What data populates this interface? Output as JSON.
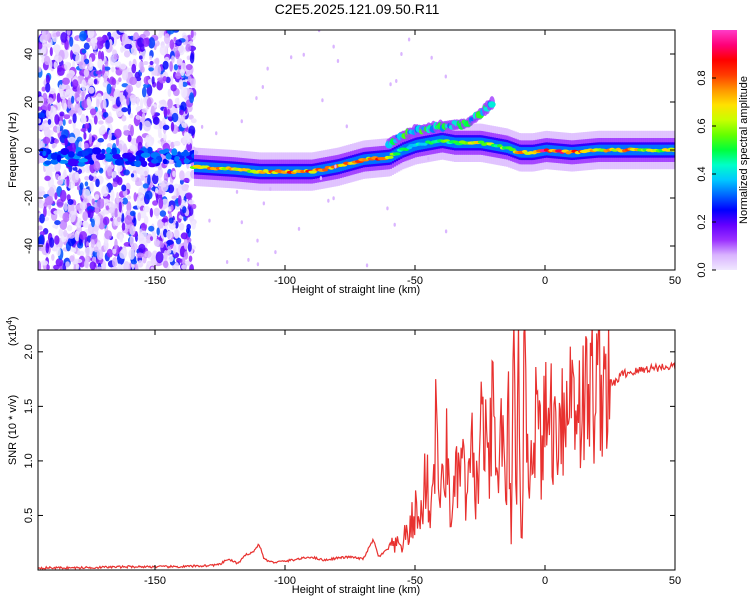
{
  "title": "C2E5.2025.121.09.50.R11",
  "chart_data": [
    {
      "type": "heatmap",
      "xlabel": "Height of straight line (km)",
      "ylabel": "Frequency (Hz)",
      "xlim": [
        -195,
        50
      ],
      "ylim": [
        -50,
        50
      ],
      "xticks": [
        -150,
        -100,
        -50,
        0,
        50
      ],
      "yticks": [
        -40,
        -20,
        0,
        20,
        40
      ],
      "colorbar": {
        "label": "Normalized spectral amplitude",
        "range": [
          0,
          1
        ],
        "ticks": [
          "0.0",
          "0.2",
          "0.4",
          "0.6",
          "0.8"
        ],
        "tick_values": [
          0,
          0.2,
          0.4,
          0.6,
          0.8
        ],
        "colormap": [
          "#f0e8ff",
          "#d9b3ff",
          "#9b30ff",
          "#6400ff",
          "#0000ff",
          "#0066ff",
          "#00c8ff",
          "#00ffc8",
          "#00ff3c",
          "#64ff00",
          "#c8ff00",
          "#ffe100",
          "#ff9600",
          "#ff3c00",
          "#ff0000",
          "#ff0078",
          "#ff3cc8"
        ]
      },
      "ridge": {
        "x": [
          -135,
          -120,
          -110,
          -100,
          -90,
          -80,
          -70,
          -60,
          -55,
          -50,
          -45,
          -40,
          -35,
          -30,
          -25,
          -20,
          -15,
          -10,
          -5,
          0,
          10,
          20,
          30,
          40,
          50
        ],
        "y": [
          -7,
          -8,
          -9,
          -9,
          -9,
          -7,
          -4,
          -3,
          0,
          2,
          3,
          4,
          3,
          3,
          3,
          2,
          1,
          -1,
          -1,
          0,
          -1,
          0,
          0,
          0,
          0
        ],
        "amplitude": [
          0.75,
          0.75,
          0.7,
          0.85,
          0.85,
          0.75,
          0.8,
          0.85,
          0.5,
          0.45,
          0.5,
          0.55,
          0.6,
          0.65,
          0.7,
          0.6,
          0.6,
          0.75,
          0.8,
          0.95,
          0.9,
          0.75,
          0.8,
          0.7,
          0.65
        ]
      },
      "upper_branch": {
        "x": [
          -60,
          -50,
          -40,
          -30,
          -25,
          -20
        ],
        "y": [
          3,
          8,
          10,
          11,
          15,
          20
        ]
      },
      "noise_region": {
        "x": [
          -195,
          -135
        ]
      }
    },
    {
      "type": "line",
      "xlabel": "Height of straight line (km)",
      "ylabel": "SNR (10 * v/v)",
      "exponent_label": "(x10",
      "exponent_power": "4",
      "xlim": [
        -195,
        50
      ],
      "ylim": [
        0,
        2.2
      ],
      "xticks": [
        -150,
        -100,
        -50,
        0,
        50
      ],
      "yticks": [
        "0.5",
        "1.0",
        "1.5",
        "2.0"
      ],
      "ytick_values": [
        0.5,
        1.0,
        1.5,
        2.0
      ],
      "color": "#e8312f",
      "series": [
        {
          "x": [
            -195,
            -180,
            -160,
            -140,
            -130,
            -125,
            -122,
            -118,
            -115,
            -112,
            -110,
            -108,
            -105,
            -100,
            -95,
            -90,
            -85,
            -80,
            -75,
            -70,
            -66,
            -64,
            -60,
            -56,
            -52,
            -50,
            -48,
            -46,
            -44,
            -42,
            -40,
            -38,
            -36,
            -34,
            -32,
            -30,
            -28,
            -26,
            -24,
            -22,
            -20,
            -18,
            -17,
            -16,
            -15,
            -14,
            -13,
            -12,
            -11,
            -10,
            -9,
            -8,
            -6,
            -4,
            -2,
            0,
            2,
            4,
            6,
            8,
            10,
            14,
            18,
            22,
            26,
            30,
            35,
            40,
            45,
            50
          ],
          "y": [
            0.02,
            0.02,
            0.03,
            0.03,
            0.04,
            0.05,
            0.1,
            0.06,
            0.14,
            0.17,
            0.24,
            0.1,
            0.07,
            0.08,
            0.1,
            0.12,
            0.09,
            0.11,
            0.12,
            0.1,
            0.28,
            0.12,
            0.2,
            0.22,
            0.35,
            0.55,
            0.4,
            0.9,
            0.5,
            1.3,
            0.6,
            1.1,
            0.5,
            0.8,
            1.0,
            0.6,
            1.05,
            0.7,
            1.5,
            0.8,
            1.45,
            0.6,
            1.7,
            1.0,
            0.5,
            1.5,
            0.4,
            1.8,
            0.3,
            2.2,
            0.1,
            1.9,
            0.9,
            1.5,
            1.1,
            1.3,
            1.5,
            1.2,
            1.6,
            1.3,
            1.75,
            1.5,
            1.65,
            1.8,
            1.7,
            1.8,
            1.82,
            1.85,
            1.86,
            1.87
          ]
        }
      ]
    }
  ]
}
